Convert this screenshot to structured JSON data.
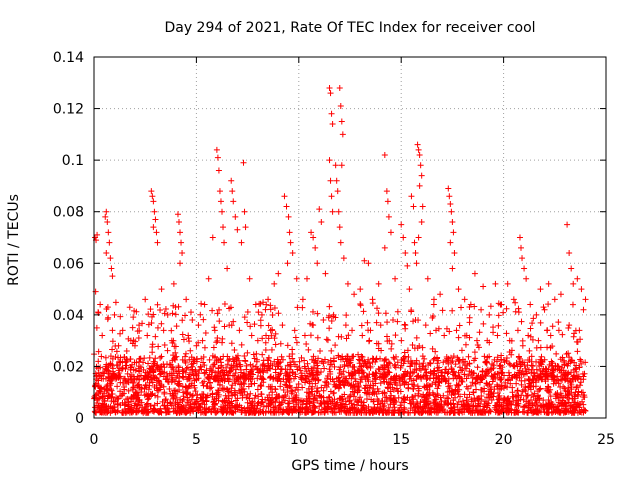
{
  "chart_data": {
    "type": "scatter",
    "title": "Day 294 of 2021, Rate Of TEC Index for receiver cool",
    "xlabel": "GPS time / hours",
    "ylabel": "ROTI / TECUs",
    "xlim": [
      0,
      25
    ],
    "ylim": [
      0,
      0.14
    ],
    "xticks": [
      0,
      5,
      10,
      15,
      20,
      25
    ],
    "yticks": [
      0,
      0.02,
      0.04,
      0.06,
      0.08,
      0.1,
      0.12,
      0.14
    ],
    "ytick_labels": [
      "0",
      "0.02",
      "0.04",
      "0.06",
      "0.08",
      "0.1",
      "0.12",
      "0.14"
    ],
    "grid": true,
    "marker": "plus",
    "color": "#ff0000",
    "x_extent": [
      0,
      24
    ],
    "background_max": 0.022,
    "points": [
      [
        0.05,
        0.07
      ],
      [
        0.1,
        0.069
      ],
      [
        0.15,
        0.071
      ],
      [
        0.08,
        0.049
      ],
      [
        0.55,
        0.078
      ],
      [
        0.6,
        0.08
      ],
      [
        0.65,
        0.076
      ],
      [
        0.7,
        0.072
      ],
      [
        0.75,
        0.068
      ],
      [
        0.8,
        0.062
      ],
      [
        0.85,
        0.058
      ],
      [
        0.9,
        0.055
      ],
      [
        0.6,
        0.064
      ],
      [
        2.8,
        0.088
      ],
      [
        2.85,
        0.086
      ],
      [
        2.9,
        0.084
      ],
      [
        2.95,
        0.08
      ],
      [
        3.0,
        0.077
      ],
      [
        3.05,
        0.072
      ],
      [
        3.1,
        0.068
      ],
      [
        2.9,
        0.074
      ],
      [
        4.1,
        0.079
      ],
      [
        4.15,
        0.076
      ],
      [
        4.2,
        0.072
      ],
      [
        4.25,
        0.068
      ],
      [
        4.3,
        0.064
      ],
      [
        4.2,
        0.06
      ],
      [
        5.8,
        0.07
      ],
      [
        6.0,
        0.104
      ],
      [
        6.05,
        0.101
      ],
      [
        6.1,
        0.096
      ],
      [
        6.15,
        0.088
      ],
      [
        6.2,
        0.084
      ],
      [
        6.25,
        0.08
      ],
      [
        6.3,
        0.074
      ],
      [
        6.35,
        0.068
      ],
      [
        6.7,
        0.092
      ],
      [
        6.75,
        0.088
      ],
      [
        6.8,
        0.084
      ],
      [
        6.9,
        0.078
      ],
      [
        7.0,
        0.073
      ],
      [
        7.3,
        0.099
      ],
      [
        7.35,
        0.08
      ],
      [
        7.4,
        0.074
      ],
      [
        7.2,
        0.068
      ],
      [
        9.3,
        0.086
      ],
      [
        9.4,
        0.082
      ],
      [
        9.5,
        0.078
      ],
      [
        9.55,
        0.072
      ],
      [
        9.6,
        0.068
      ],
      [
        9.7,
        0.064
      ],
      [
        9.45,
        0.06
      ],
      [
        10.6,
        0.072
      ],
      [
        10.7,
        0.07
      ],
      [
        10.8,
        0.066
      ],
      [
        11.0,
        0.081
      ],
      [
        11.1,
        0.076
      ],
      [
        11.5,
        0.128
      ],
      [
        11.55,
        0.126
      ],
      [
        11.6,
        0.118
      ],
      [
        11.65,
        0.114
      ],
      [
        11.5,
        0.1
      ],
      [
        11.55,
        0.092
      ],
      [
        11.6,
        0.086
      ],
      [
        11.65,
        0.08
      ],
      [
        11.8,
        0.098
      ],
      [
        11.85,
        0.092
      ],
      [
        11.9,
        0.088
      ],
      [
        11.95,
        0.08
      ],
      [
        12.0,
        0.074
      ],
      [
        12.05,
        0.068
      ],
      [
        12.0,
        0.128
      ],
      [
        12.05,
        0.121
      ],
      [
        12.1,
        0.115
      ],
      [
        12.15,
        0.11
      ],
      [
        12.1,
        0.098
      ],
      [
        12.2,
        0.062
      ],
      [
        13.2,
        0.061
      ],
      [
        13.4,
        0.06
      ],
      [
        14.2,
        0.102
      ],
      [
        14.3,
        0.088
      ],
      [
        14.35,
        0.084
      ],
      [
        14.4,
        0.078
      ],
      [
        14.5,
        0.072
      ],
      [
        14.2,
        0.066
      ],
      [
        15.0,
        0.075
      ],
      [
        15.1,
        0.07
      ],
      [
        15.2,
        0.064
      ],
      [
        15.3,
        0.059
      ],
      [
        15.5,
        0.086
      ],
      [
        15.6,
        0.082
      ],
      [
        15.65,
        0.068
      ],
      [
        15.7,
        0.064
      ],
      [
        15.75,
        0.06
      ],
      [
        15.8,
        0.106
      ],
      [
        15.85,
        0.104
      ],
      [
        15.9,
        0.102
      ],
      [
        15.95,
        0.098
      ],
      [
        16.0,
        0.094
      ],
      [
        15.9,
        0.09
      ],
      [
        16.05,
        0.082
      ],
      [
        16.0,
        0.076
      ],
      [
        15.85,
        0.07
      ],
      [
        17.3,
        0.089
      ],
      [
        17.35,
        0.086
      ],
      [
        17.4,
        0.083
      ],
      [
        17.45,
        0.08
      ],
      [
        17.5,
        0.076
      ],
      [
        17.55,
        0.072
      ],
      [
        17.4,
        0.068
      ],
      [
        17.6,
        0.064
      ],
      [
        17.5,
        0.058
      ],
      [
        18.6,
        0.056
      ],
      [
        19.0,
        0.051
      ],
      [
        19.6,
        0.052
      ],
      [
        20.2,
        0.052
      ],
      [
        20.8,
        0.07
      ],
      [
        20.85,
        0.066
      ],
      [
        20.9,
        0.062
      ],
      [
        21.0,
        0.058
      ],
      [
        21.1,
        0.054
      ],
      [
        21.8,
        0.05
      ],
      [
        22.2,
        0.052
      ],
      [
        23.1,
        0.075
      ],
      [
        23.2,
        0.064
      ],
      [
        23.3,
        0.058
      ],
      [
        23.6,
        0.054
      ],
      [
        23.8,
        0.05
      ],
      [
        24.0,
        0.046
      ],
      [
        0.3,
        0.044
      ],
      [
        1.0,
        0.04
      ],
      [
        1.4,
        0.034
      ],
      [
        1.8,
        0.03
      ],
      [
        2.2,
        0.036
      ],
      [
        2.5,
        0.046
      ],
      [
        3.3,
        0.05
      ],
      [
        3.6,
        0.04
      ],
      [
        3.9,
        0.052
      ],
      [
        4.5,
        0.046
      ],
      [
        4.8,
        0.038
      ],
      [
        5.1,
        0.036
      ],
      [
        5.4,
        0.044
      ],
      [
        5.6,
        0.054
      ],
      [
        6.5,
        0.058
      ],
      [
        7.6,
        0.054
      ],
      [
        7.9,
        0.044
      ],
      [
        8.2,
        0.04
      ],
      [
        8.5,
        0.046
      ],
      [
        8.8,
        0.052
      ],
      [
        9.0,
        0.056
      ],
      [
        9.9,
        0.054
      ],
      [
        10.2,
        0.046
      ],
      [
        10.4,
        0.054
      ],
      [
        10.9,
        0.06
      ],
      [
        11.3,
        0.056
      ],
      [
        12.4,
        0.052
      ],
      [
        12.7,
        0.048
      ],
      [
        13.0,
        0.05
      ],
      [
        13.6,
        0.046
      ],
      [
        13.9,
        0.052
      ],
      [
        14.7,
        0.054
      ],
      [
        15.4,
        0.05
      ],
      [
        16.3,
        0.054
      ],
      [
        16.6,
        0.046
      ],
      [
        16.9,
        0.048
      ],
      [
        17.8,
        0.05
      ],
      [
        18.1,
        0.046
      ],
      [
        18.4,
        0.044
      ],
      [
        18.9,
        0.042
      ],
      [
        19.3,
        0.04
      ],
      [
        19.9,
        0.044
      ],
      [
        20.5,
        0.046
      ],
      [
        21.3,
        0.044
      ],
      [
        21.6,
        0.04
      ],
      [
        22.0,
        0.042
      ],
      [
        22.5,
        0.046
      ],
      [
        22.8,
        0.048
      ],
      [
        23.4,
        0.052
      ],
      [
        23.9,
        0.042
      ],
      [
        0.4,
        0.032
      ],
      [
        0.9,
        0.034
      ],
      [
        1.2,
        0.028
      ],
      [
        1.6,
        0.026
      ],
      [
        2.0,
        0.028
      ],
      [
        2.6,
        0.032
      ],
      [
        3.4,
        0.034
      ],
      [
        3.8,
        0.03
      ],
      [
        4.6,
        0.032
      ],
      [
        5.0,
        0.028
      ],
      [
        5.3,
        0.03
      ],
      [
        5.9,
        0.034
      ],
      [
        6.6,
        0.036
      ],
      [
        7.1,
        0.034
      ],
      [
        7.7,
        0.032
      ],
      [
        8.0,
        0.03
      ],
      [
        8.4,
        0.032
      ],
      [
        8.7,
        0.034
      ],
      [
        9.2,
        0.036
      ],
      [
        9.8,
        0.034
      ],
      [
        10.3,
        0.032
      ],
      [
        10.7,
        0.036
      ],
      [
        11.2,
        0.038
      ],
      [
        11.7,
        0.04
      ],
      [
        12.3,
        0.036
      ],
      [
        12.6,
        0.034
      ],
      [
        13.1,
        0.032
      ],
      [
        13.5,
        0.034
      ],
      [
        14.0,
        0.036
      ],
      [
        14.6,
        0.038
      ],
      [
        15.2,
        0.036
      ],
      [
        15.7,
        0.038
      ],
      [
        16.2,
        0.036
      ],
      [
        16.7,
        0.034
      ],
      [
        17.1,
        0.032
      ],
      [
        17.7,
        0.034
      ],
      [
        18.2,
        0.032
      ],
      [
        18.7,
        0.03
      ],
      [
        19.2,
        0.03
      ],
      [
        19.7,
        0.032
      ],
      [
        20.3,
        0.03
      ],
      [
        20.7,
        0.034
      ],
      [
        21.2,
        0.032
      ],
      [
        21.7,
        0.03
      ],
      [
        22.3,
        0.032
      ],
      [
        22.7,
        0.034
      ],
      [
        23.2,
        0.036
      ],
      [
        23.7,
        0.034
      ]
    ]
  }
}
